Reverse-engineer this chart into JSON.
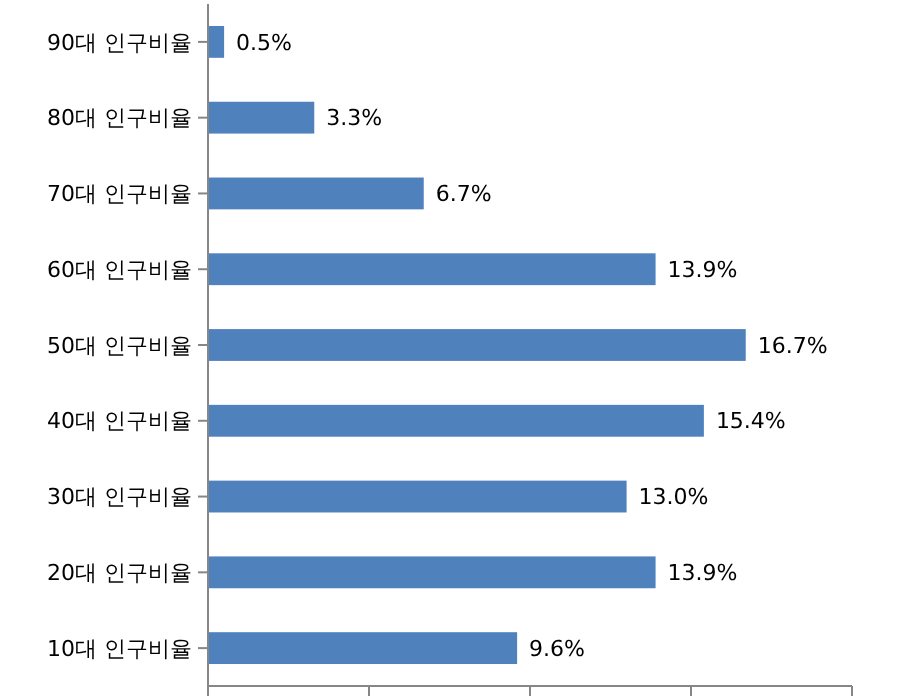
{
  "chart_data": {
    "type": "bar",
    "orientation": "horizontal",
    "categories": [
      "90대 인구비율",
      "80대 인구비율",
      "70대 인구비율",
      "60대 인구비율",
      "50대 인구비율",
      "40대 인구비율",
      "30대 인구비율",
      "20대 인구비율",
      "10대 인구비율"
    ],
    "values": [
      0.5,
      3.3,
      6.7,
      13.9,
      16.7,
      15.4,
      13.0,
      13.9,
      9.6
    ],
    "value_labels": [
      "0.5%",
      "3.3%",
      "6.7%",
      "13.9%",
      "16.7%",
      "15.4%",
      "13.0%",
      "13.9%",
      "9.6%"
    ],
    "color": "#4f81bd",
    "xlim": [
      0,
      20
    ],
    "xticks": [
      {
        "value": 0,
        "label": null
      },
      {
        "value": 5,
        "label": null
      },
      {
        "value": 10,
        "label": null
      },
      {
        "value": 15,
        "label": null
      },
      {
        "value": 20,
        "label": null
      }
    ],
    "grid": false
  }
}
